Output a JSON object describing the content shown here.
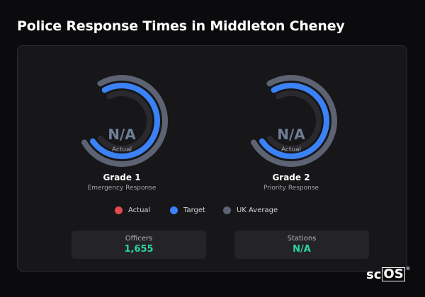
{
  "title": "Police Response Times in Middleton Cheney",
  "colors": {
    "actual": "#e5484d",
    "target": "#3b82f6",
    "uk_average": "#5d6372",
    "accent_value": "#2ed3a2"
  },
  "grades": [
    {
      "title": "Grade 1",
      "subtitle": "Emergency Response",
      "value": "N/A",
      "value_caption": "Actual"
    },
    {
      "title": "Grade 2",
      "subtitle": "Priority Response",
      "value": "N/A",
      "value_caption": "Actual"
    }
  ],
  "legend": [
    {
      "label": "Actual",
      "color": "#e5484d"
    },
    {
      "label": "Target",
      "color": "#3b82f6"
    },
    {
      "label": "UK Average",
      "color": "#5d6372"
    }
  ],
  "stats": [
    {
      "label": "Officers",
      "value": "1,655"
    },
    {
      "label": "Stations",
      "value": "N/A"
    }
  ],
  "logo": {
    "prefix": "sc",
    "boxed": "OS",
    "mark": "®"
  }
}
